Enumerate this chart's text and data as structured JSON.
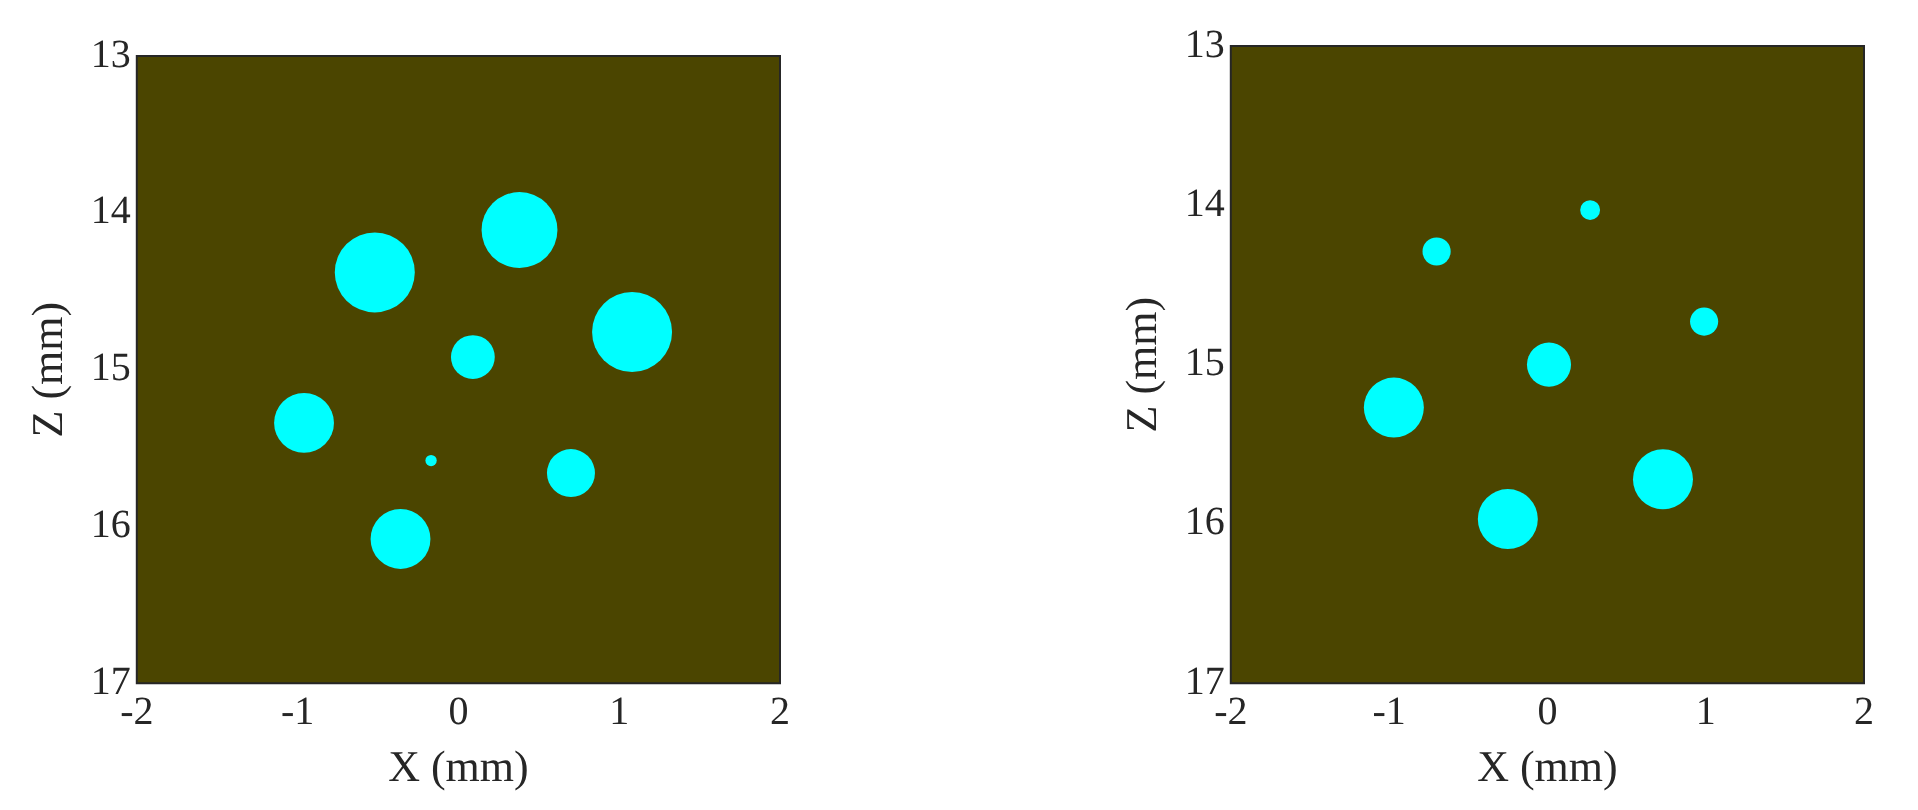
{
  "chart_data": [
    {
      "type": "bubble",
      "xlabel": "X (mm)",
      "ylabel": "Z (mm)",
      "xlim": [
        -2,
        2
      ],
      "xticks": [
        -2,
        -1,
        0,
        1,
        2
      ],
      "ylim": [
        17,
        13
      ],
      "yticks": [
        13,
        14,
        15,
        16,
        17
      ],
      "grid": false,
      "legend": false,
      "series": [
        {
          "color": "#00ffff",
          "x": [
            -0.52,
            0.38,
            1.08,
            0.09,
            -0.96,
            -0.17,
            0.7,
            -0.36
          ],
          "values": [
            14.38,
            14.11,
            14.76,
            14.92,
            15.34,
            15.58,
            15.66,
            16.08
          ],
          "sizes": [
            1,
            0.9,
            1,
            0.3,
            0.56,
            0.02,
            0.36,
            0.56
          ]
        }
      ]
    },
    {
      "type": "bubble",
      "xlabel": "X (mm)",
      "ylabel": "Z (mm)",
      "xlim": [
        -2,
        2
      ],
      "xticks": [
        -2,
        -1,
        0,
        1,
        2
      ],
      "ylim": [
        17,
        13
      ],
      "yticks": [
        13,
        14,
        15,
        16,
        17
      ],
      "grid": false,
      "legend": false,
      "series": [
        {
          "color": "#00ffff",
          "x": [
            0.27,
            -0.7,
            0.99,
            0.01,
            -0.97,
            0.73,
            -0.25
          ],
          "values": [
            14.03,
            14.29,
            14.73,
            15.0,
            15.27,
            15.72,
            15.97
          ],
          "sizes": [
            0.11,
            0.22,
            0.22,
            0.54,
            1,
            1,
            1
          ]
        }
      ]
    }
  ]
}
